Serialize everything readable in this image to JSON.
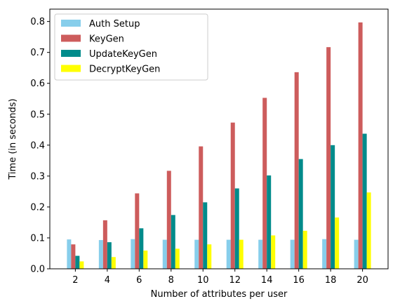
{
  "chart_data": {
    "type": "bar",
    "title": "",
    "xlabel": "Number of attributes per user",
    "ylabel": "Time (in seconds)",
    "categories": [
      "2",
      "4",
      "6",
      "8",
      "10",
      "12",
      "14",
      "16",
      "18",
      "20"
    ],
    "ylim": [
      0,
      0.84
    ],
    "yticks": [
      "0.0",
      "0.1",
      "0.2",
      "0.3",
      "0.4",
      "0.5",
      "0.6",
      "0.7",
      "0.8"
    ],
    "grid": false,
    "legend_position": "top-left",
    "series": [
      {
        "name": "Auth Setup",
        "color": "#87ceeb",
        "values": [
          0.095,
          0.093,
          0.096,
          0.094,
          0.094,
          0.094,
          0.094,
          0.094,
          0.096,
          0.094
        ]
      },
      {
        "name": "KeyGen",
        "color": "#cd5c5c",
        "values": [
          0.079,
          0.157,
          0.244,
          0.317,
          0.396,
          0.473,
          0.553,
          0.636,
          0.717,
          0.797
        ]
      },
      {
        "name": "UpdateKeyGen",
        "color": "#008b8b",
        "values": [
          0.042,
          0.086,
          0.131,
          0.174,
          0.215,
          0.26,
          0.302,
          0.355,
          0.4,
          0.437
        ]
      },
      {
        "name": "DecryptKeyGen",
        "color": "#ffff00",
        "values": [
          0.024,
          0.038,
          0.059,
          0.065,
          0.079,
          0.094,
          0.108,
          0.123,
          0.166,
          0.247
        ]
      }
    ]
  }
}
